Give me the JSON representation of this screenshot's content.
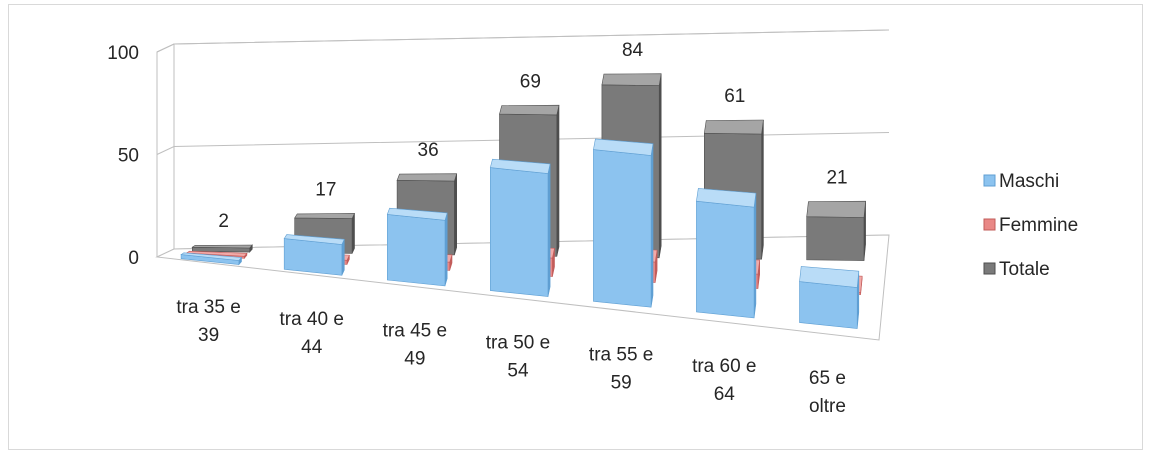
{
  "chart_data": {
    "type": "bar",
    "subtype": "3d-column",
    "categories": [
      [
        "tra 35 e",
        "39"
      ],
      [
        "tra 40 e",
        "44"
      ],
      [
        "tra 45 e",
        "49"
      ],
      [
        "tra 50 e",
        "54"
      ],
      [
        "tra 55 e",
        "59"
      ],
      [
        "tra 60 e",
        "64"
      ],
      [
        "65 e",
        "oltre"
      ]
    ],
    "series": [
      {
        "name": "Maschi",
        "values": [
          2,
          15,
          32,
          60,
          74,
          54,
          20
        ],
        "show_labels": false
      },
      {
        "name": "Femmine",
        "values": [
          0,
          2,
          4,
          9,
          10,
          7,
          1
        ],
        "show_labels": false
      },
      {
        "name": "Totale",
        "values": [
          2,
          17,
          36,
          69,
          84,
          61,
          21
        ],
        "show_labels": true
      }
    ],
    "y_ticks": [
      "0",
      "50",
      "100"
    ],
    "ylim": [
      0,
      100
    ],
    "grid": true,
    "legend": "right",
    "colors": {
      "Maschi": {
        "front": "#8cc3ef",
        "top": "#b9dcf7",
        "side": "#5f9fd3"
      },
      "Femmine": {
        "front": "#e98886",
        "top": "#f2aaa8",
        "side": "#c25c5a"
      },
      "Totale": {
        "front": "#7a7a7a",
        "top": "#a5a5a5",
        "side": "#4e4e4e"
      }
    }
  }
}
